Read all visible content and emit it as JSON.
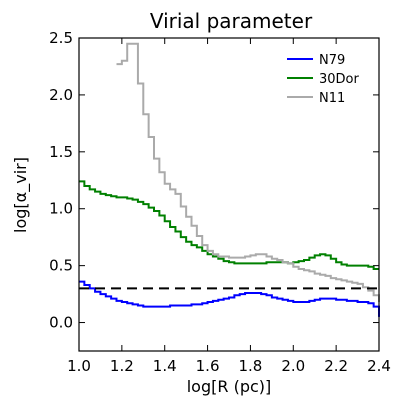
{
  "chart_data": {
    "type": "line",
    "step": true,
    "title": "Virial parameter",
    "xlabel": "log[R (pc)]",
    "ylabel": "log[α_vir]",
    "xlim": [
      1.0,
      2.4
    ],
    "ylim": [
      -0.25,
      2.5
    ],
    "xticks": [
      "1.0",
      "1.2",
      "1.4",
      "1.6",
      "1.8",
      "2.0",
      "2.2",
      "2.4"
    ],
    "yticks": [
      "0.0",
      "0.5",
      "1.0",
      "1.5",
      "2.0",
      "2.5"
    ],
    "grid": false,
    "legend": "top-right",
    "reference_line": {
      "y": 0.3,
      "style": "dashed",
      "color": "#000000"
    },
    "series": [
      {
        "name": "N79",
        "color": "#0000ff",
        "x": [
          1.0,
          1.025,
          1.05,
          1.075,
          1.1,
          1.125,
          1.15,
          1.175,
          1.2,
          1.225,
          1.25,
          1.275,
          1.3,
          1.325,
          1.35,
          1.375,
          1.4,
          1.425,
          1.45,
          1.475,
          1.5,
          1.525,
          1.55,
          1.575,
          1.6,
          1.625,
          1.65,
          1.675,
          1.7,
          1.725,
          1.75,
          1.775,
          1.8,
          1.825,
          1.85,
          1.875,
          1.9,
          1.925,
          1.95,
          1.975,
          2.0,
          2.025,
          2.05,
          2.075,
          2.1,
          2.125,
          2.15,
          2.175,
          2.2,
          2.225,
          2.25,
          2.275,
          2.3,
          2.325,
          2.35,
          2.375,
          2.4
        ],
        "values": [
          0.36,
          0.33,
          0.3,
          0.27,
          0.25,
          0.23,
          0.21,
          0.19,
          0.18,
          0.17,
          0.16,
          0.15,
          0.14,
          0.14,
          0.14,
          0.14,
          0.14,
          0.15,
          0.15,
          0.15,
          0.15,
          0.16,
          0.16,
          0.17,
          0.18,
          0.19,
          0.2,
          0.21,
          0.22,
          0.24,
          0.25,
          0.26,
          0.26,
          0.26,
          0.25,
          0.24,
          0.22,
          0.21,
          0.2,
          0.19,
          0.18,
          0.18,
          0.18,
          0.19,
          0.2,
          0.21,
          0.21,
          0.21,
          0.2,
          0.2,
          0.19,
          0.19,
          0.18,
          0.18,
          0.17,
          0.14,
          0.05
        ]
      },
      {
        "name": "30Dor",
        "color": "#008000",
        "x": [
          1.0,
          1.025,
          1.05,
          1.075,
          1.1,
          1.125,
          1.15,
          1.175,
          1.2,
          1.225,
          1.25,
          1.275,
          1.3,
          1.325,
          1.35,
          1.375,
          1.4,
          1.425,
          1.45,
          1.475,
          1.5,
          1.525,
          1.55,
          1.575,
          1.6,
          1.625,
          1.65,
          1.675,
          1.7,
          1.725,
          1.75,
          1.775,
          1.8,
          1.825,
          1.85,
          1.875,
          1.9,
          1.925,
          1.95,
          1.975,
          2.0,
          2.025,
          2.05,
          2.075,
          2.1,
          2.125,
          2.15,
          2.175,
          2.2,
          2.225,
          2.25,
          2.275,
          2.3,
          2.325,
          2.35,
          2.375,
          2.4
        ],
        "values": [
          1.24,
          1.2,
          1.17,
          1.15,
          1.13,
          1.12,
          1.11,
          1.1,
          1.1,
          1.09,
          1.08,
          1.06,
          1.04,
          1.01,
          0.98,
          0.94,
          0.89,
          0.84,
          0.8,
          0.75,
          0.71,
          0.68,
          0.66,
          0.63,
          0.6,
          0.58,
          0.56,
          0.54,
          0.53,
          0.52,
          0.52,
          0.52,
          0.52,
          0.52,
          0.52,
          0.53,
          0.53,
          0.53,
          0.53,
          0.52,
          0.53,
          0.54,
          0.55,
          0.57,
          0.59,
          0.6,
          0.59,
          0.56,
          0.53,
          0.51,
          0.5,
          0.5,
          0.5,
          0.5,
          0.49,
          0.47,
          0.47
        ]
      },
      {
        "name": "N11",
        "color": "#aaaaaa",
        "x": [
          1.175,
          1.2,
          1.225,
          1.25,
          1.275,
          1.3,
          1.325,
          1.35,
          1.375,
          1.4,
          1.425,
          1.45,
          1.475,
          1.5,
          1.525,
          1.55,
          1.575,
          1.6,
          1.625,
          1.65,
          1.675,
          1.7,
          1.725,
          1.75,
          1.775,
          1.8,
          1.825,
          1.85,
          1.875,
          1.9,
          1.925,
          1.95,
          1.975,
          2.0,
          2.025,
          2.05,
          2.075,
          2.1,
          2.125,
          2.15,
          2.175,
          2.2,
          2.225,
          2.25,
          2.275,
          2.3,
          2.325,
          2.35,
          2.375,
          2.4
        ],
        "values": [
          2.27,
          2.3,
          2.45,
          2.45,
          2.1,
          1.83,
          1.63,
          1.44,
          1.32,
          1.22,
          1.17,
          1.13,
          1.02,
          0.93,
          0.85,
          0.76,
          0.68,
          0.63,
          0.6,
          0.58,
          0.58,
          0.57,
          0.57,
          0.57,
          0.58,
          0.59,
          0.6,
          0.6,
          0.58,
          0.56,
          0.55,
          0.53,
          0.52,
          0.49,
          0.47,
          0.46,
          0.45,
          0.43,
          0.42,
          0.41,
          0.39,
          0.38,
          0.37,
          0.36,
          0.35,
          0.34,
          0.31,
          0.28,
          0.24,
          0.18
        ]
      }
    ]
  }
}
